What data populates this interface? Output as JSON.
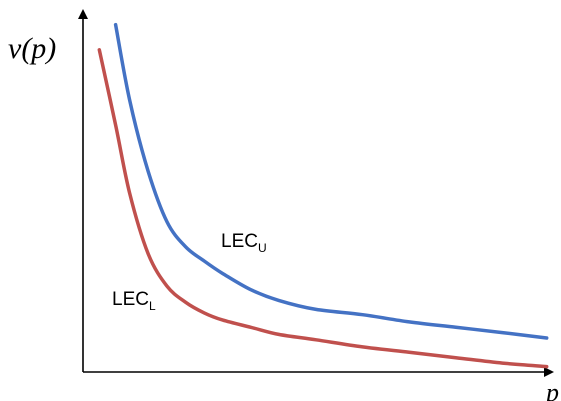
{
  "chart_data": {
    "type": "line",
    "title": "",
    "ylabel": "v(p)",
    "xlabel": "p",
    "grid": false,
    "legend": "none",
    "xlim": [
      0,
      1
    ],
    "ylim": [
      0,
      1
    ],
    "series": [
      {
        "name": "LEC",
        "label_sub": "U",
        "color": "#4472C4",
        "x": [
          0.07,
          0.1,
          0.14,
          0.18,
          0.22,
          0.26,
          0.3,
          0.36,
          0.42,
          0.5,
          0.6,
          0.7,
          0.8,
          0.9,
          0.995
        ],
        "y": [
          0.97,
          0.76,
          0.56,
          0.42,
          0.35,
          0.31,
          0.275,
          0.23,
          0.2,
          0.175,
          0.16,
          0.14,
          0.125,
          0.11,
          0.095
        ]
      },
      {
        "name": "LEC",
        "label_sub": "L",
        "color": "#C0504D",
        "x": [
          0.035,
          0.07,
          0.1,
          0.14,
          0.18,
          0.22,
          0.26,
          0.3,
          0.36,
          0.42,
          0.5,
          0.6,
          0.7,
          0.8,
          0.9,
          0.995
        ],
        "y": [
          0.9,
          0.69,
          0.5,
          0.33,
          0.24,
          0.195,
          0.165,
          0.145,
          0.125,
          0.105,
          0.09,
          0.07,
          0.055,
          0.04,
          0.025,
          0.015
        ]
      }
    ]
  }
}
